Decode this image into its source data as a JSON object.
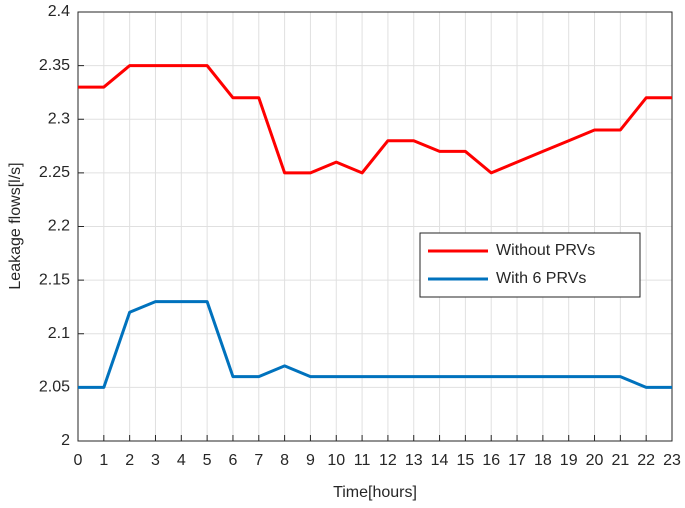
{
  "chart_data": {
    "type": "line",
    "xlabel": "Time[hours]",
    "ylabel": "Leakage flows[l/s]",
    "x": [
      0,
      1,
      2,
      3,
      4,
      5,
      6,
      7,
      8,
      9,
      10,
      11,
      12,
      13,
      14,
      15,
      16,
      17,
      18,
      19,
      20,
      21,
      22,
      23
    ],
    "series": [
      {
        "name": "Without PRVs",
        "color": "#ff0000",
        "values": [
          2.33,
          2.33,
          2.35,
          2.35,
          2.35,
          2.35,
          2.32,
          2.32,
          2.25,
          2.25,
          2.26,
          2.25,
          2.28,
          2.28,
          2.27,
          2.27,
          2.25,
          2.26,
          2.27,
          2.28,
          2.29,
          2.29,
          2.32,
          2.32
        ]
      },
      {
        "name": "With 6 PRVs",
        "color": "#0072bd",
        "values": [
          2.05,
          2.05,
          2.12,
          2.13,
          2.13,
          2.13,
          2.06,
          2.06,
          2.07,
          2.06,
          2.06,
          2.06,
          2.06,
          2.06,
          2.06,
          2.06,
          2.06,
          2.06,
          2.06,
          2.06,
          2.06,
          2.06,
          2.05,
          2.05
        ]
      }
    ],
    "xlim": [
      0,
      23
    ],
    "xticks": [
      0,
      1,
      2,
      3,
      4,
      5,
      6,
      7,
      8,
      9,
      10,
      11,
      12,
      13,
      14,
      15,
      16,
      17,
      18,
      19,
      20,
      21,
      22,
      23
    ],
    "ylim": [
      2,
      2.4
    ],
    "yticks": [
      2,
      2.05,
      2.1,
      2.15,
      2.2,
      2.25,
      2.3,
      2.35,
      2.4
    ],
    "grid": true,
    "legend": "right"
  }
}
